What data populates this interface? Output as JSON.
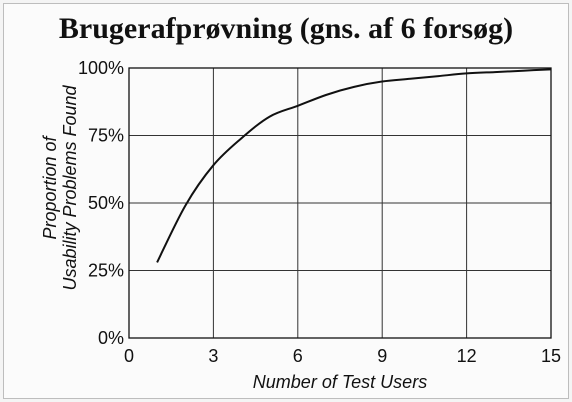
{
  "chart_data": {
    "type": "line",
    "title": "Brugerafprøvning (gns. af 6 forsøg)",
    "xlabel": "Number of Test Users",
    "ylabel_lines": [
      "Proportion of",
      "Usability Problems Found"
    ],
    "x_ticks": [
      0,
      3,
      6,
      9,
      12,
      15
    ],
    "y_ticks": [
      {
        "value": 0,
        "label": "0%"
      },
      {
        "value": 25,
        "label": "25%"
      },
      {
        "value": 50,
        "label": "50%"
      },
      {
        "value": 75,
        "label": "75%"
      },
      {
        "value": 100,
        "label": "100%"
      }
    ],
    "xlim": [
      0,
      15
    ],
    "ylim": [
      0,
      100
    ],
    "grid": true,
    "series": [
      {
        "x": [
          1,
          2,
          3,
          4,
          5,
          6,
          7,
          8,
          9,
          10,
          11,
          12,
          13,
          14,
          15
        ],
        "y": [
          28,
          49,
          64,
          74,
          82,
          86,
          90,
          93,
          95,
          96,
          97,
          98,
          98.5,
          99,
          99.5
        ]
      }
    ]
  }
}
